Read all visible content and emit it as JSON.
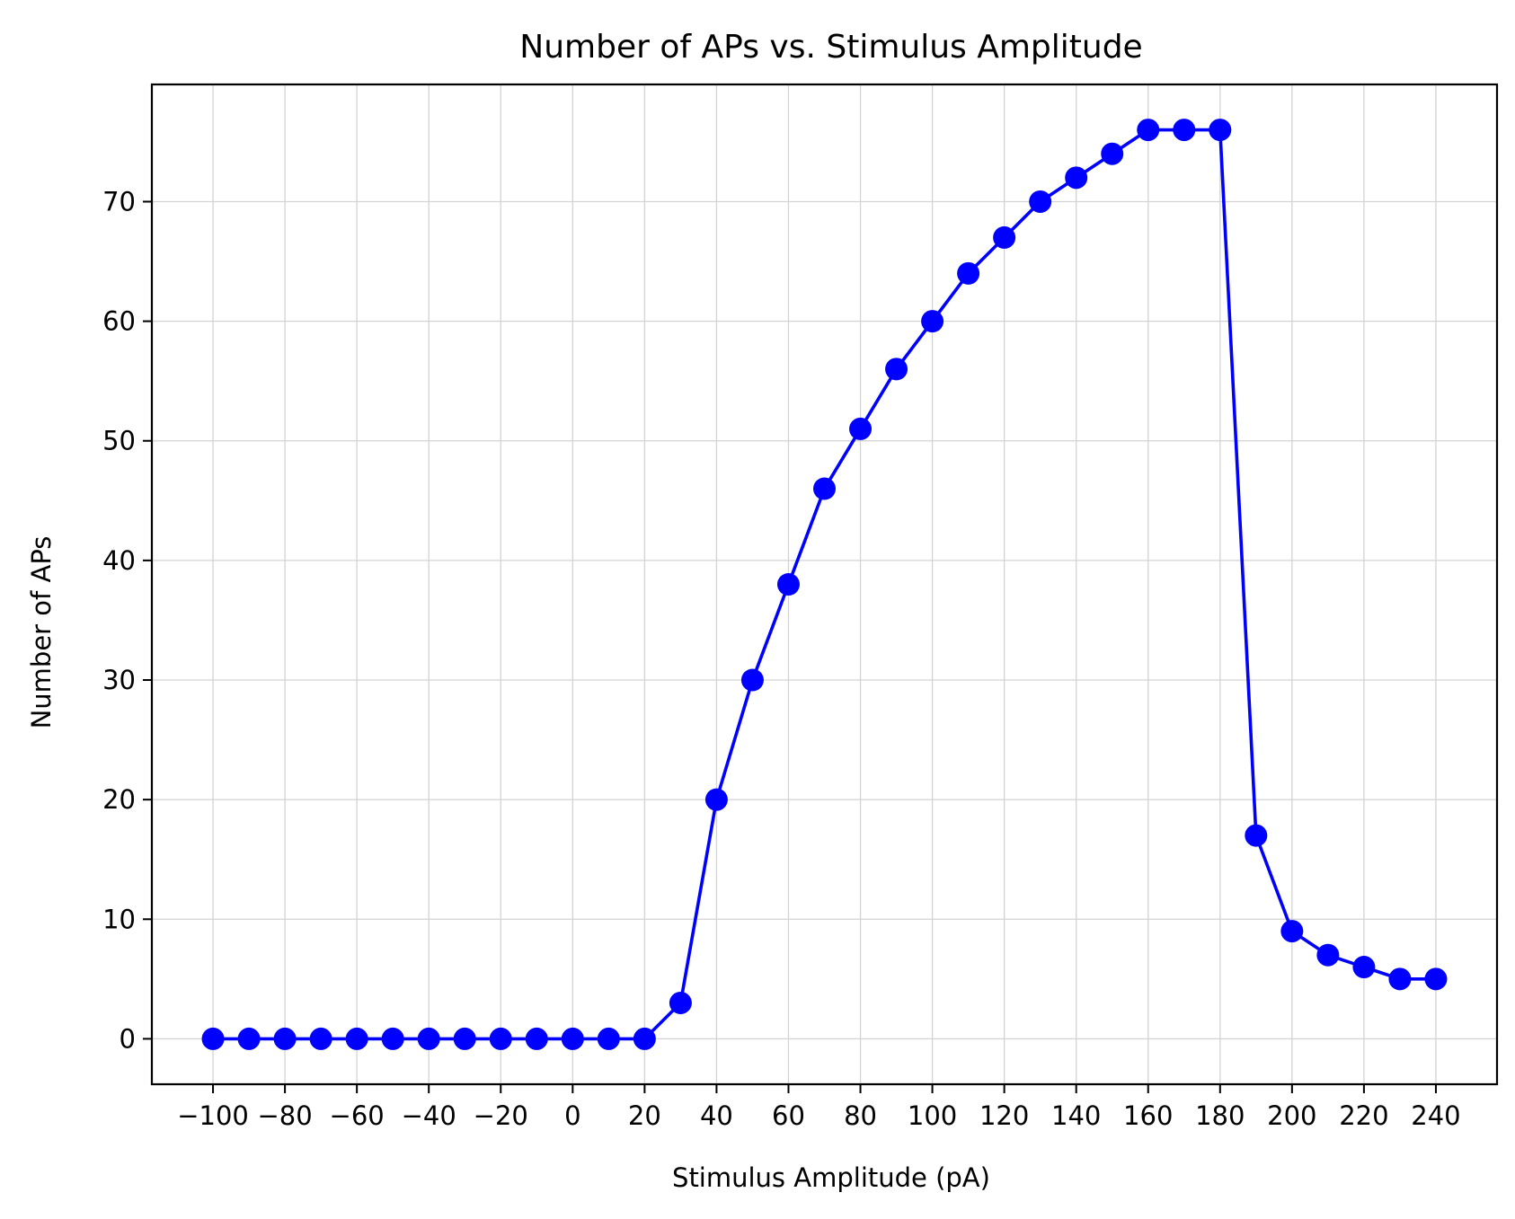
{
  "chart_data": {
    "type": "line",
    "title": "Number of APs vs. Stimulus Amplitude",
    "xlabel": "Stimulus Amplitude (pA)",
    "ylabel": "Number of APs",
    "xlim": [
      -117,
      257
    ],
    "ylim": [
      -3.8,
      79.8
    ],
    "xticks": [
      -100,
      -80,
      -60,
      -40,
      -20,
      0,
      20,
      40,
      60,
      80,
      100,
      120,
      140,
      160,
      180,
      200,
      220,
      240
    ],
    "xtick_labels": [
      "−100",
      "−80",
      "−60",
      "−40",
      "−20",
      "0",
      "20",
      "40",
      "60",
      "80",
      "100",
      "120",
      "140",
      "160",
      "180",
      "200",
      "220",
      "240"
    ],
    "yticks": [
      0,
      10,
      20,
      30,
      40,
      50,
      60,
      70
    ],
    "ytick_labels": [
      "0",
      "10",
      "20",
      "30",
      "40",
      "50",
      "60",
      "70"
    ],
    "grid": true,
    "series": [
      {
        "color": "#0000ff",
        "marker": "circle",
        "x": [
          -100,
          -90,
          -80,
          -70,
          -60,
          -50,
          -40,
          -30,
          -20,
          -10,
          0,
          10,
          20,
          30,
          40,
          50,
          60,
          70,
          80,
          90,
          100,
          110,
          120,
          130,
          140,
          150,
          160,
          170,
          180,
          190,
          200,
          210,
          220,
          230,
          240
        ],
        "y": [
          0,
          0,
          0,
          0,
          0,
          0,
          0,
          0,
          0,
          0,
          0,
          0,
          0,
          3,
          20,
          30,
          38,
          46,
          51,
          56,
          60,
          64,
          67,
          70,
          72,
          74,
          76,
          76,
          76,
          17,
          9,
          7,
          6,
          5,
          5
        ]
      }
    ]
  }
}
